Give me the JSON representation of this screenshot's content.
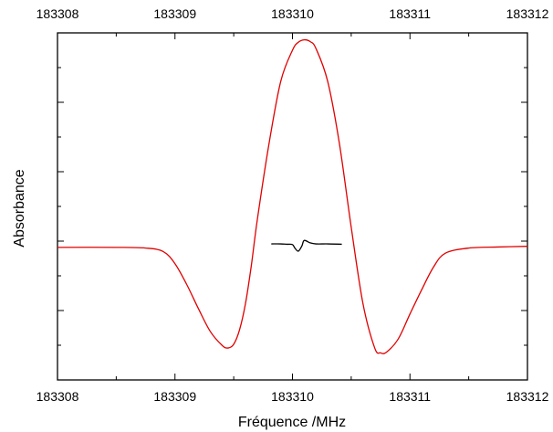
{
  "chart_data": {
    "type": "line",
    "title": "",
    "xlabel": "Fréquence /MHz",
    "ylabel": "Absorbance",
    "xlim": [
      183308,
      183312
    ],
    "ylim": [
      0,
      100
    ],
    "x_ticks": [
      183308,
      183309,
      183310,
      183311,
      183312
    ],
    "x_tick_labels": [
      "183308",
      "183309",
      "183310",
      "183311",
      "183312"
    ],
    "top_tick_labels": [
      "183308",
      "183309",
      "183310",
      "183311",
      "183312"
    ],
    "y_tick_labels": [],
    "grid": false,
    "legend": "none",
    "series": [
      {
        "color": "#e00000",
        "x": [
          183308.0,
          183308.5,
          183308.75,
          183308.9,
          183309.0,
          183309.1,
          183309.2,
          183309.3,
          183309.4,
          183309.45,
          183309.5,
          183309.55,
          183309.6,
          183309.65,
          183309.7,
          183309.8,
          183309.9,
          183310.0,
          183310.05,
          183310.1,
          183310.15,
          183310.2,
          183310.3,
          183310.4,
          183310.5,
          183310.6,
          183310.7,
          183310.75,
          183310.8,
          183310.9,
          183311.0,
          183311.1,
          183311.2,
          183311.3,
          183311.5,
          183311.75,
          183312.0
        ],
        "y": [
          38.2,
          38.2,
          38.0,
          37.0,
          33.5,
          27.5,
          20.5,
          14.0,
          10.0,
          9.2,
          10.3,
          14.5,
          22.0,
          33.0,
          46.0,
          68.0,
          86.0,
          95.0,
          97.3,
          98.0,
          97.5,
          95.5,
          86.0,
          68.0,
          44.0,
          22.0,
          9.2,
          7.8,
          8.0,
          11.8,
          19.0,
          26.0,
          32.5,
          36.5,
          38.0,
          38.3,
          38.5
        ]
      },
      {
        "color": "#000000",
        "x": [
          183309.82,
          183309.9,
          183309.95,
          183310.0,
          183310.02,
          183310.05,
          183310.08,
          183310.1,
          183310.15,
          183310.2,
          183310.3,
          183310.42
        ],
        "y": [
          39.2,
          39.2,
          39.1,
          39.0,
          38.0,
          37.1,
          38.6,
          40.2,
          39.5,
          39.2,
          39.2,
          39.1
        ]
      }
    ]
  }
}
